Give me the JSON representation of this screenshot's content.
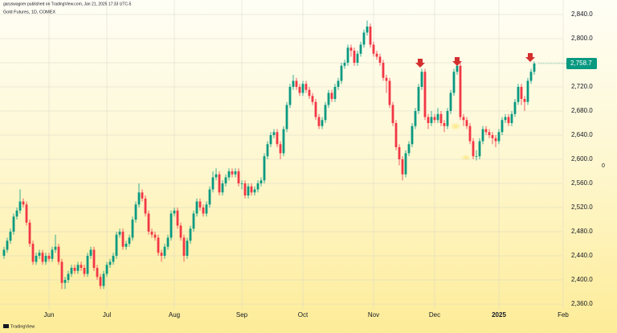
{
  "chart_data": {
    "type": "candlestick",
    "publisher": "garyswagner published on TradingView.com, Jan 21, 2025 17:33 UTC-5",
    "title": "Gold Futures, 1D, COMEX",
    "brand": "TradingView",
    "scale_label": "0",
    "up_color": "#089981",
    "down_color": "#f23645",
    "grid": true,
    "ylim": [
      2360,
      2840
    ],
    "yticks": [
      {
        "value": 2360,
        "label": "2,360.0"
      },
      {
        "value": 2400,
        "label": "2,400.0"
      },
      {
        "value": 2440,
        "label": "2,440.0"
      },
      {
        "value": 2480,
        "label": "2,480.0"
      },
      {
        "value": 2520,
        "label": "2,520.0"
      },
      {
        "value": 2560,
        "label": "2,560.0"
      },
      {
        "value": 2600,
        "label": "2,600.0"
      },
      {
        "value": 2640,
        "label": "2,640.0"
      },
      {
        "value": 2680,
        "label": "2,680.0"
      },
      {
        "value": 2720,
        "label": "2,720.0"
      },
      {
        "value": 2760,
        "label": "2,760.0"
      },
      {
        "value": 2800,
        "label": "2,800.0"
      },
      {
        "value": 2840,
        "label": "2,840.0"
      }
    ],
    "last_price": {
      "value": 2758.7,
      "label": "2,758.7"
    },
    "x": [
      null,
      null,
      null,
      null,
      null,
      null,
      null,
      null,
      null,
      null,
      null,
      null,
      null,
      null,
      "Jun",
      null,
      null,
      null,
      null,
      null,
      null,
      null,
      null,
      null,
      null,
      null,
      null,
      null,
      null,
      null,
      null,
      null,
      "Jul",
      null,
      null,
      null,
      null,
      null,
      null,
      null,
      null,
      null,
      null,
      null,
      null,
      null,
      null,
      null,
      null,
      null,
      null,
      null,
      null,
      "Aug",
      null,
      null,
      null,
      null,
      null,
      null,
      null,
      null,
      null,
      null,
      null,
      null,
      null,
      null,
      null,
      null,
      null,
      null,
      null,
      null,
      "Sep",
      null,
      null,
      null,
      null,
      null,
      null,
      null,
      null,
      null,
      null,
      null,
      null,
      null,
      null,
      null,
      null,
      null,
      null,
      "Oct",
      null,
      null,
      null,
      null,
      null,
      null,
      null,
      null,
      null,
      null,
      null,
      null,
      null,
      null,
      null,
      null,
      null,
      null,
      null,
      null,
      null,
      "Nov",
      null,
      null,
      null,
      null,
      null,
      null,
      null,
      null,
      null,
      null,
      null,
      null,
      null,
      null,
      null,
      null,
      null,
      null,
      "Dec",
      null,
      null,
      null,
      null,
      null,
      null,
      null,
      null,
      null,
      null,
      null,
      null,
      null,
      null,
      null,
      null,
      null,
      null,
      null,
      "2025",
      null,
      null,
      null,
      null,
      null,
      null,
      null,
      null,
      null,
      null,
      null,
      null,
      null,
      null,
      null,
      null,
      null,
      null,
      null,
      "Feb"
    ],
    "open": [
      2440,
      2450,
      2465,
      2480,
      2505,
      2515,
      2530,
      2525,
      2495,
      2460,
      2430,
      2440,
      2445,
      2430,
      2440,
      2435,
      2450,
      2455,
      2430,
      2395,
      2400,
      2410,
      2420,
      2415,
      2425,
      2420,
      2410,
      2440,
      2450,
      2420,
      2405,
      2390,
      2410,
      2425,
      2430,
      2440,
      2475,
      2480,
      2455,
      2460,
      2470,
      2500,
      2525,
      2545,
      2535,
      2510,
      2480,
      2475,
      2470,
      2445,
      2440,
      2455,
      2470,
      2510,
      2515,
      2490,
      2470,
      2440,
      2465,
      2485,
      2510,
      2530,
      2520,
      2510,
      2525,
      2550,
      2570,
      2575,
      2545,
      2560,
      2570,
      2580,
      2575,
      2580,
      2560,
      2560,
      2540,
      2555,
      2545,
      2550,
      2560,
      2565,
      2605,
      2625,
      2640,
      2645,
      2625,
      2610,
      2650,
      2690,
      2720,
      2730,
      2720,
      2710,
      2725,
      2715,
      2705,
      2695,
      2670,
      2655,
      2665,
      2690,
      2710,
      2700,
      2720,
      2730,
      2755,
      2760,
      2785,
      2780,
      2760,
      2775,
      2790,
      2810,
      2820,
      2790,
      2775,
      2770,
      2760,
      2735,
      2730,
      2690,
      2660,
      2620,
      2600,
      2575,
      2610,
      2625,
      2655,
      2680,
      2720,
      2745,
      2670,
      2660,
      2670,
      2665,
      2675,
      2660,
      2655,
      2680,
      2710,
      2745,
      2755,
      2670,
      2665,
      2655,
      2630,
      2605,
      2605,
      2630,
      2650,
      2645,
      2640,
      2635,
      2630,
      2645,
      2665,
      2670,
      2660,
      2675,
      2695,
      2720,
      2700,
      2695,
      2730,
      2745,
      null,
      null,
      null,
      null,
      null,
      null,
      null,
      null,
      null
    ],
    "high": [
      2455,
      2470,
      2485,
      2510,
      2520,
      2550,
      2535,
      2530,
      2500,
      2465,
      2445,
      2450,
      2450,
      2445,
      2445,
      2455,
      2475,
      2460,
      2435,
      2405,
      2415,
      2425,
      2425,
      2430,
      2430,
      2425,
      2445,
      2455,
      2455,
      2425,
      2410,
      2415,
      2430,
      2435,
      2445,
      2480,
      2485,
      2485,
      2465,
      2475,
      2505,
      2530,
      2560,
      2550,
      2540,
      2515,
      2485,
      2480,
      2475,
      2450,
      2460,
      2475,
      2515,
      2520,
      2520,
      2495,
      2475,
      2470,
      2490,
      2515,
      2535,
      2535,
      2525,
      2530,
      2555,
      2580,
      2585,
      2580,
      2565,
      2575,
      2585,
      2585,
      2585,
      2585,
      2565,
      2565,
      2560,
      2560,
      2555,
      2565,
      2570,
      2610,
      2630,
      2645,
      2650,
      2650,
      2630,
      2655,
      2695,
      2725,
      2740,
      2735,
      2725,
      2730,
      2730,
      2720,
      2710,
      2700,
      2675,
      2670,
      2695,
      2715,
      2715,
      2725,
      2735,
      2760,
      2765,
      2790,
      2790,
      2785,
      2780,
      2795,
      2815,
      2830,
      2825,
      2795,
      2780,
      2775,
      2765,
      2740,
      2735,
      2695,
      2665,
      2625,
      2605,
      2615,
      2630,
      2660,
      2685,
      2725,
      2750,
      2750,
      2675,
      2680,
      2675,
      2685,
      2680,
      2665,
      2685,
      2715,
      2750,
      2760,
      2760,
      2675,
      2670,
      2660,
      2635,
      2615,
      2635,
      2655,
      2655,
      2650,
      2645,
      2640,
      2650,
      2670,
      2675,
      2675,
      2680,
      2700,
      2725,
      2725,
      2705,
      2735,
      2750,
      2762,
      null,
      null,
      null,
      null,
      null,
      null,
      null,
      null,
      null
    ],
    "low": [
      2435,
      2445,
      2460,
      2475,
      2500,
      2510,
      2520,
      2490,
      2455,
      2425,
      2425,
      2435,
      2425,
      2425,
      2430,
      2430,
      2445,
      2425,
      2385,
      2385,
      2395,
      2405,
      2410,
      2410,
      2415,
      2405,
      2405,
      2435,
      2415,
      2400,
      2385,
      2385,
      2405,
      2420,
      2425,
      2435,
      2470,
      2450,
      2450,
      2455,
      2465,
      2495,
      2520,
      2530,
      2505,
      2475,
      2470,
      2465,
      2440,
      2430,
      2435,
      2450,
      2465,
      2505,
      2485,
      2465,
      2430,
      2435,
      2460,
      2480,
      2505,
      2515,
      2505,
      2505,
      2520,
      2545,
      2565,
      2540,
      2540,
      2555,
      2565,
      2570,
      2570,
      2555,
      2550,
      2535,
      2535,
      2540,
      2540,
      2545,
      2555,
      2560,
      2600,
      2620,
      2635,
      2620,
      2600,
      2605,
      2645,
      2685,
      2715,
      2715,
      2705,
      2705,
      2710,
      2700,
      2690,
      2665,
      2650,
      2650,
      2660,
      2685,
      2695,
      2695,
      2715,
      2725,
      2750,
      2755,
      2770,
      2755,
      2755,
      2770,
      2785,
      2805,
      2785,
      2770,
      2765,
      2755,
      2730,
      2710,
      2685,
      2655,
      2615,
      2590,
      2565,
      2570,
      2605,
      2620,
      2650,
      2675,
      2715,
      2665,
      2650,
      2655,
      2660,
      2660,
      2655,
      2645,
      2650,
      2675,
      2705,
      2740,
      2665,
      2655,
      2650,
      2625,
      2600,
      2598,
      2600,
      2625,
      2640,
      2635,
      2625,
      2620,
      2625,
      2640,
      2660,
      2655,
      2655,
      2670,
      2690,
      2690,
      2680,
      2690,
      2725,
      2740,
      null,
      null,
      null,
      null,
      null,
      null,
      null,
      null,
      null
    ],
    "close": [
      2450,
      2465,
      2480,
      2505,
      2515,
      2530,
      2525,
      2495,
      2460,
      2430,
      2440,
      2445,
      2430,
      2440,
      2435,
      2450,
      2455,
      2430,
      2395,
      2400,
      2410,
      2420,
      2415,
      2425,
      2420,
      2410,
      2440,
      2450,
      2420,
      2405,
      2390,
      2410,
      2425,
      2430,
      2440,
      2475,
      2480,
      2455,
      2460,
      2470,
      2500,
      2525,
      2545,
      2535,
      2510,
      2480,
      2475,
      2470,
      2445,
      2440,
      2455,
      2470,
      2510,
      2515,
      2490,
      2470,
      2440,
      2465,
      2485,
      2510,
      2530,
      2520,
      2510,
      2525,
      2550,
      2570,
      2575,
      2545,
      2560,
      2570,
      2580,
      2575,
      2580,
      2560,
      2560,
      2540,
      2555,
      2545,
      2550,
      2560,
      2565,
      2605,
      2625,
      2640,
      2645,
      2625,
      2610,
      2650,
      2690,
      2720,
      2730,
      2720,
      2710,
      2725,
      2715,
      2705,
      2695,
      2670,
      2655,
      2665,
      2690,
      2710,
      2700,
      2720,
      2730,
      2755,
      2760,
      2785,
      2780,
      2760,
      2775,
      2790,
      2810,
      2820,
      2790,
      2775,
      2770,
      2760,
      2735,
      2730,
      2690,
      2660,
      2620,
      2600,
      2575,
      2610,
      2625,
      2655,
      2680,
      2720,
      2745,
      2670,
      2660,
      2670,
      2665,
      2675,
      2660,
      2655,
      2680,
      2710,
      2745,
      2755,
      2670,
      2665,
      2655,
      2630,
      2605,
      2605,
      2630,
      2650,
      2645,
      2640,
      2635,
      2630,
      2645,
      2665,
      2670,
      2660,
      2675,
      2695,
      2720,
      2700,
      2695,
      2730,
      2745,
      2758.7,
      null,
      null,
      null,
      null,
      null,
      null,
      null,
      null,
      null
    ]
  }
}
